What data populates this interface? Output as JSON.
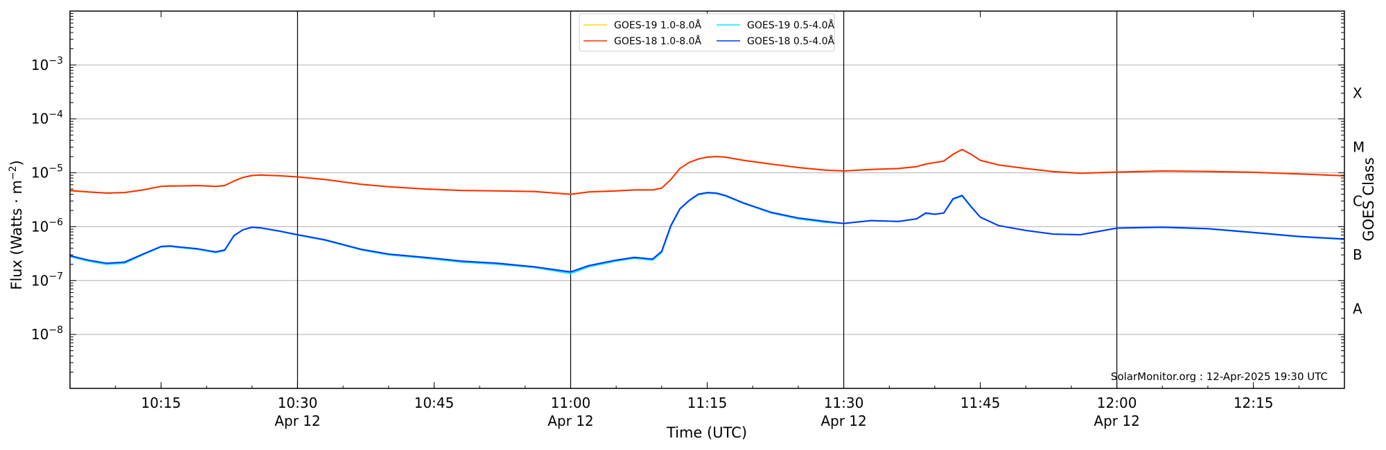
{
  "chart_data": {
    "type": "line",
    "ylabel": "Flux (Watts · m",
    "ylabel_exp": "−2",
    "ylabel_close": ")",
    "xlabel": "Time (UTC)",
    "right_ylabel": "GOES Class",
    "y_scale": "log",
    "ylim": [
      1e-09,
      0.01
    ],
    "xlim": [
      "10:05",
      "12:25"
    ],
    "y_ticks": [
      {
        "value": 1e-08,
        "base": "10",
        "exp": "−8"
      },
      {
        "value": 1e-07,
        "base": "10",
        "exp": "−7"
      },
      {
        "value": 1e-06,
        "base": "10",
        "exp": "−6"
      },
      {
        "value": 1e-05,
        "base": "10",
        "exp": "−5"
      },
      {
        "value": 0.0001,
        "base": "10",
        "exp": "−4"
      },
      {
        "value": 0.001,
        "base": "10",
        "exp": "−3"
      }
    ],
    "x_ticks": [
      {
        "time": "10:15",
        "label": "10:15",
        "date": ""
      },
      {
        "time": "10:30",
        "label": "10:30",
        "date": "Apr 12"
      },
      {
        "time": "10:45",
        "label": "10:45",
        "date": ""
      },
      {
        "time": "11:00",
        "label": "11:00",
        "date": "Apr 12"
      },
      {
        "time": "11:15",
        "label": "11:15",
        "date": ""
      },
      {
        "time": "11:30",
        "label": "11:30",
        "date": "Apr 12"
      },
      {
        "time": "11:45",
        "label": "11:45",
        "date": ""
      },
      {
        "time": "12:00",
        "label": "12:00",
        "date": "Apr 12"
      },
      {
        "time": "12:15",
        "label": "12:15",
        "date": ""
      }
    ],
    "vertical_lines": [
      "10:30",
      "11:00",
      "11:30",
      "12:00"
    ],
    "classes": [
      {
        "label": "A",
        "value": 3e-08
      },
      {
        "label": "B",
        "value": 3e-07
      },
      {
        "label": "C",
        "value": 3e-06
      },
      {
        "label": "M",
        "value": 3e-05
      },
      {
        "label": "X",
        "value": 0.0003
      }
    ],
    "grid": true,
    "legend_position": "top-center",
    "credit": "SolarMonitor.org : 12-Apr-2025 19:30 UTC",
    "x": [
      "10:05",
      "10:07",
      "10:09",
      "10:11",
      "10:13",
      "10:15",
      "10:16",
      "10:17",
      "10:19",
      "10:21",
      "10:22",
      "10:23",
      "10:24",
      "10:25",
      "10:26",
      "10:28",
      "10:30",
      "10:33",
      "10:37",
      "10:40",
      "10:44",
      "10:48",
      "10:52",
      "10:56",
      "11:00",
      "11:02",
      "11:05",
      "11:07",
      "11:09",
      "11:10",
      "11:11",
      "11:12",
      "11:13",
      "11:14",
      "11:15",
      "11:16",
      "11:17",
      "11:19",
      "11:22",
      "11:25",
      "11:28",
      "11:30",
      "11:33",
      "11:36",
      "11:38",
      "11:39",
      "11:40",
      "11:41",
      "11:42",
      "11:43",
      "11:44",
      "11:45",
      "11:47",
      "11:50",
      "11:53",
      "11:56",
      "12:00",
      "12:05",
      "12:10",
      "12:15",
      "12:20",
      "12:25"
    ],
    "series": [
      {
        "name": "GOES-19 1.0-8.0Å",
        "color": "#ffd700",
        "values": [
          4.6e-06,
          4.4e-06,
          4.2e-06,
          4.3e-06,
          4.8e-06,
          5.6e-06,
          5.7e-06,
          5.7e-06,
          5.8e-06,
          5.6e-06,
          5.8e-06,
          7e-06,
          8.2e-06,
          8.9e-06,
          9.1e-06,
          8.8e-06,
          8.4e-06,
          7.5e-06,
          6.1e-06,
          5.5e-06,
          5e-06,
          4.7e-06,
          4.6e-06,
          4.5e-06,
          4e-06,
          4.4e-06,
          4.6e-06,
          4.8e-06,
          4.8e-06,
          5.2e-06,
          7.5e-06,
          1.2e-05,
          1.55e-05,
          1.8e-05,
          1.95e-05,
          2e-05,
          1.95e-05,
          1.7e-05,
          1.45e-05,
          1.25e-05,
          1.12e-05,
          1.08e-05,
          1.15e-05,
          1.2e-05,
          1.3e-05,
          1.45e-05,
          1.55e-05,
          1.65e-05,
          2.2e-05,
          2.7e-05,
          2.2e-05,
          1.7e-05,
          1.4e-05,
          1.2e-05,
          1.05e-05,
          9.8e-06,
          1.03e-05,
          1.08e-05,
          1.06e-05,
          1.02e-05,
          9.5e-06,
          8.8e-06
        ]
      },
      {
        "name": "GOES-19 0.5-4.0Å",
        "color": "#00e5ff",
        "values": [
          2.8e-07,
          2.3e-07,
          2e-07,
          2.1e-07,
          3e-07,
          4.2e-07,
          4.3e-07,
          4.1e-07,
          3.8e-07,
          3.3e-07,
          3.6e-07,
          6.7e-07,
          8.7e-07,
          9.7e-07,
          9.4e-07,
          8.2e-07,
          7e-07,
          5.6e-07,
          3.7e-07,
          3e-07,
          2.6e-07,
          2.2e-07,
          2e-07,
          1.75e-07,
          1.35e-07,
          1.8e-07,
          2.3e-07,
          2.6e-07,
          2.4e-07,
          3.3e-07,
          1e-06,
          2.1e-06,
          3e-06,
          3.9e-06,
          4.2e-06,
          4.1e-06,
          3.7e-06,
          2.7e-06,
          1.8e-06,
          1.4e-06,
          1.2e-06,
          1.15e-06,
          1.3e-06,
          1.25e-06,
          1.4e-06,
          1.75e-06,
          1.7e-06,
          1.8e-06,
          3.2e-06,
          3.7e-06,
          2.3e-06,
          1.5e-06,
          1.05e-06,
          8.5e-07,
          7.3e-07,
          7.1e-07,
          9.4e-07,
          9.7e-07,
          9.1e-07,
          7.7e-07,
          6.5e-07,
          5.8e-07
        ]
      },
      {
        "name": "GOES-18 1.0-8.0Å",
        "color": "#ff2a00",
        "values": [
          4.7e-06,
          4.4e-06,
          4.2e-06,
          4.3e-06,
          4.8e-06,
          5.6e-06,
          5.7e-06,
          5.7e-06,
          5.8e-06,
          5.6e-06,
          5.8e-06,
          7e-06,
          8.2e-06,
          8.9e-06,
          9.1e-06,
          8.8e-06,
          8.4e-06,
          7.5e-06,
          6.1e-06,
          5.5e-06,
          5e-06,
          4.7e-06,
          4.6e-06,
          4.5e-06,
          4e-06,
          4.4e-06,
          4.6e-06,
          4.8e-06,
          4.8e-06,
          5.2e-06,
          7.5e-06,
          1.2e-05,
          1.55e-05,
          1.8e-05,
          1.95e-05,
          2e-05,
          1.95e-05,
          1.7e-05,
          1.45e-05,
          1.25e-05,
          1.12e-05,
          1.08e-05,
          1.15e-05,
          1.2e-05,
          1.3e-05,
          1.45e-05,
          1.55e-05,
          1.65e-05,
          2.2e-05,
          2.7e-05,
          2.2e-05,
          1.7e-05,
          1.4e-05,
          1.2e-05,
          1.05e-05,
          9.8e-06,
          1.03e-05,
          1.08e-05,
          1.06e-05,
          1.02e-05,
          9.5e-06,
          8.8e-06
        ]
      },
      {
        "name": "GOES-18 0.5-4.0Å",
        "color": "#0033ff",
        "values": [
          2.9e-07,
          2.4e-07,
          2.1e-07,
          2.2e-07,
          3.1e-07,
          4.3e-07,
          4.4e-07,
          4.2e-07,
          3.9e-07,
          3.4e-07,
          3.7e-07,
          6.8e-07,
          8.8e-07,
          9.8e-07,
          9.5e-07,
          8.3e-07,
          7.1e-07,
          5.7e-07,
          3.8e-07,
          3.1e-07,
          2.7e-07,
          2.3e-07,
          2.1e-07,
          1.8e-07,
          1.45e-07,
          1.9e-07,
          2.4e-07,
          2.7e-07,
          2.5e-07,
          3.5e-07,
          1.05e-06,
          2.15e-06,
          3.05e-06,
          4e-06,
          4.3e-06,
          4.2e-06,
          3.8e-06,
          2.75e-06,
          1.85e-06,
          1.45e-06,
          1.25e-06,
          1.15e-06,
          1.3e-06,
          1.25e-06,
          1.4e-06,
          1.8e-06,
          1.7e-06,
          1.8e-06,
          3.3e-06,
          3.8e-06,
          2.35e-06,
          1.5e-06,
          1.05e-06,
          8.5e-07,
          7.3e-07,
          7.1e-07,
          9.4e-07,
          9.8e-07,
          9.2e-07,
          7.8e-07,
          6.6e-07,
          5.9e-07
        ]
      }
    ]
  }
}
